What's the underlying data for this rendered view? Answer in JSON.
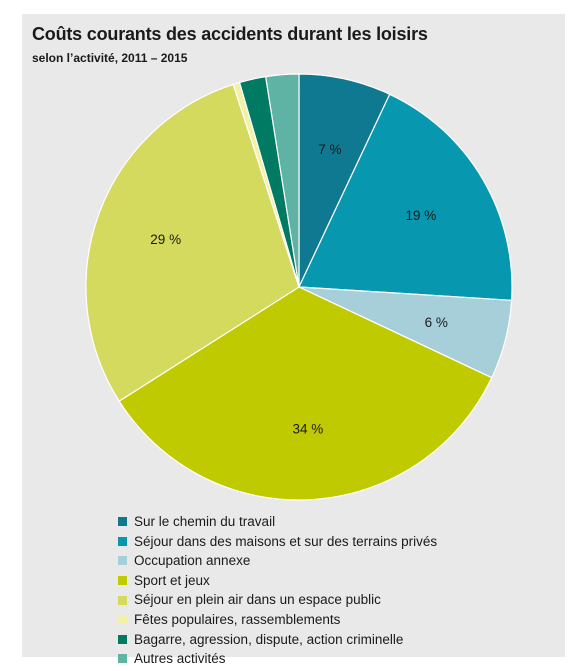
{
  "chart_data": {
    "type": "pie",
    "title": "Coûts courants des accidents durant les loisirs",
    "subtitle": "selon l’activité, 2011 – 2015",
    "slices": [
      {
        "label": "Sur le chemin du travail",
        "value": 7,
        "display": "7 %",
        "color": "#0f7991"
      },
      {
        "label": "Séjour dans des maisons et sur des terrains privés",
        "value": 19,
        "display": "19 %",
        "color": "#0797ae"
      },
      {
        "label": "Occupation annexe",
        "value": 6,
        "display": "6 %",
        "color": "#a6cfda"
      },
      {
        "label": "Sport et jeux",
        "value": 34,
        "display": "34 %",
        "color": "#bfcb00"
      },
      {
        "label": "Séjour en plein air dans un espace public",
        "value": 29,
        "display": "29 %",
        "color": "#d3da5e"
      },
      {
        "label": "Fêtes populaires, rassemblements",
        "value": 0.5,
        "display": "",
        "color": "#f1f1a8"
      },
      {
        "label": "Bagarre, agression, dispute, action criminelle",
        "value": 2,
        "display": "",
        "color": "#007a63"
      },
      {
        "label": "Autres activités",
        "value": 2.5,
        "display": "",
        "color": "#5fb3a4"
      }
    ],
    "legend_position": "bottom"
  }
}
